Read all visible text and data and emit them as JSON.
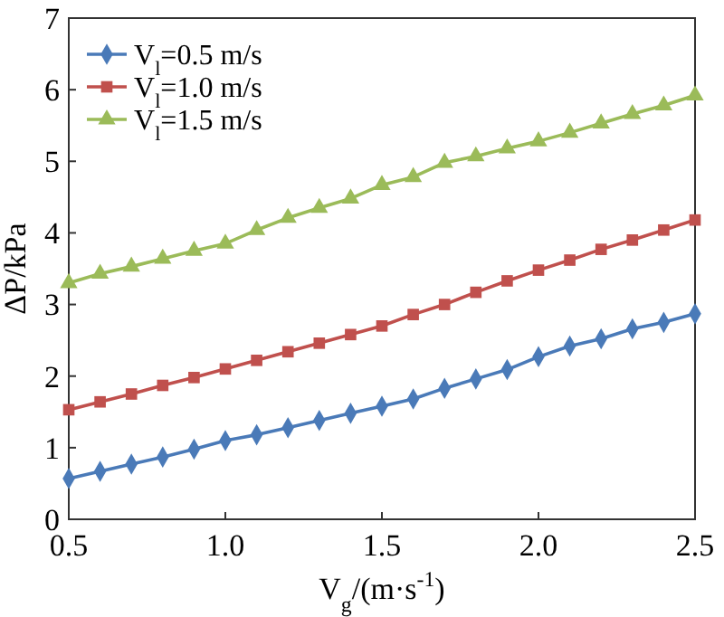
{
  "chart_data": {
    "type": "line",
    "xlabel": "V$_{g}$/(m·s$^{-1}$)",
    "ylabel": "ΔP/kPa",
    "x": [
      0.5,
      0.6,
      0.7,
      0.8,
      0.9,
      1.0,
      1.1,
      1.2,
      1.3,
      1.4,
      1.5,
      1.6,
      1.7,
      1.8,
      1.9,
      2.0,
      2.1,
      2.2,
      2.3,
      2.4,
      2.5
    ],
    "xlim": [
      0.5,
      2.5
    ],
    "xticks": [
      {
        "value": 0.5,
        "label": "0.5"
      },
      {
        "value": 1,
        "label": "1.0"
      },
      {
        "value": 1.5,
        "label": "1.5"
      },
      {
        "value": 2,
        "label": "2.0"
      },
      {
        "value": 2.5,
        "label": "2.5"
      }
    ],
    "ylim": [
      0,
      7
    ],
    "yticks": [
      0,
      1,
      2,
      3,
      4,
      5,
      6,
      7
    ],
    "legend": "top left",
    "grid": false,
    "line_style": "solid",
    "series": [
      {
        "name": "V$_{l}$=0.5 m/s",
        "color": "#4a7ab8",
        "marker": "diamond",
        "values": [
          0.57,
          0.67,
          0.77,
          0.87,
          0.98,
          1.1,
          1.18,
          1.28,
          1.38,
          1.48,
          1.58,
          1.68,
          1.83,
          1.96,
          2.09,
          2.27,
          2.42,
          2.52,
          2.66,
          2.75,
          2.87
        ]
      },
      {
        "name": "V$_{l}$=1.0 m/s",
        "color": "#c0504d",
        "marker": "square",
        "values": [
          1.53,
          1.64,
          1.75,
          1.87,
          1.98,
          2.1,
          2.22,
          2.34,
          2.46,
          2.58,
          2.7,
          2.86,
          3.0,
          3.17,
          3.33,
          3.48,
          3.62,
          3.77,
          3.9,
          4.04,
          4.18
        ]
      },
      {
        "name": "V$_{l}$=1.5 m/s",
        "color": "#9bbb59",
        "marker": "triangle",
        "values": [
          3.3,
          3.43,
          3.53,
          3.64,
          3.75,
          3.85,
          4.04,
          4.21,
          4.35,
          4.48,
          4.67,
          4.78,
          4.98,
          5.07,
          5.18,
          5.28,
          5.4,
          5.53,
          5.66,
          5.78,
          5.92
        ]
      }
    ]
  }
}
